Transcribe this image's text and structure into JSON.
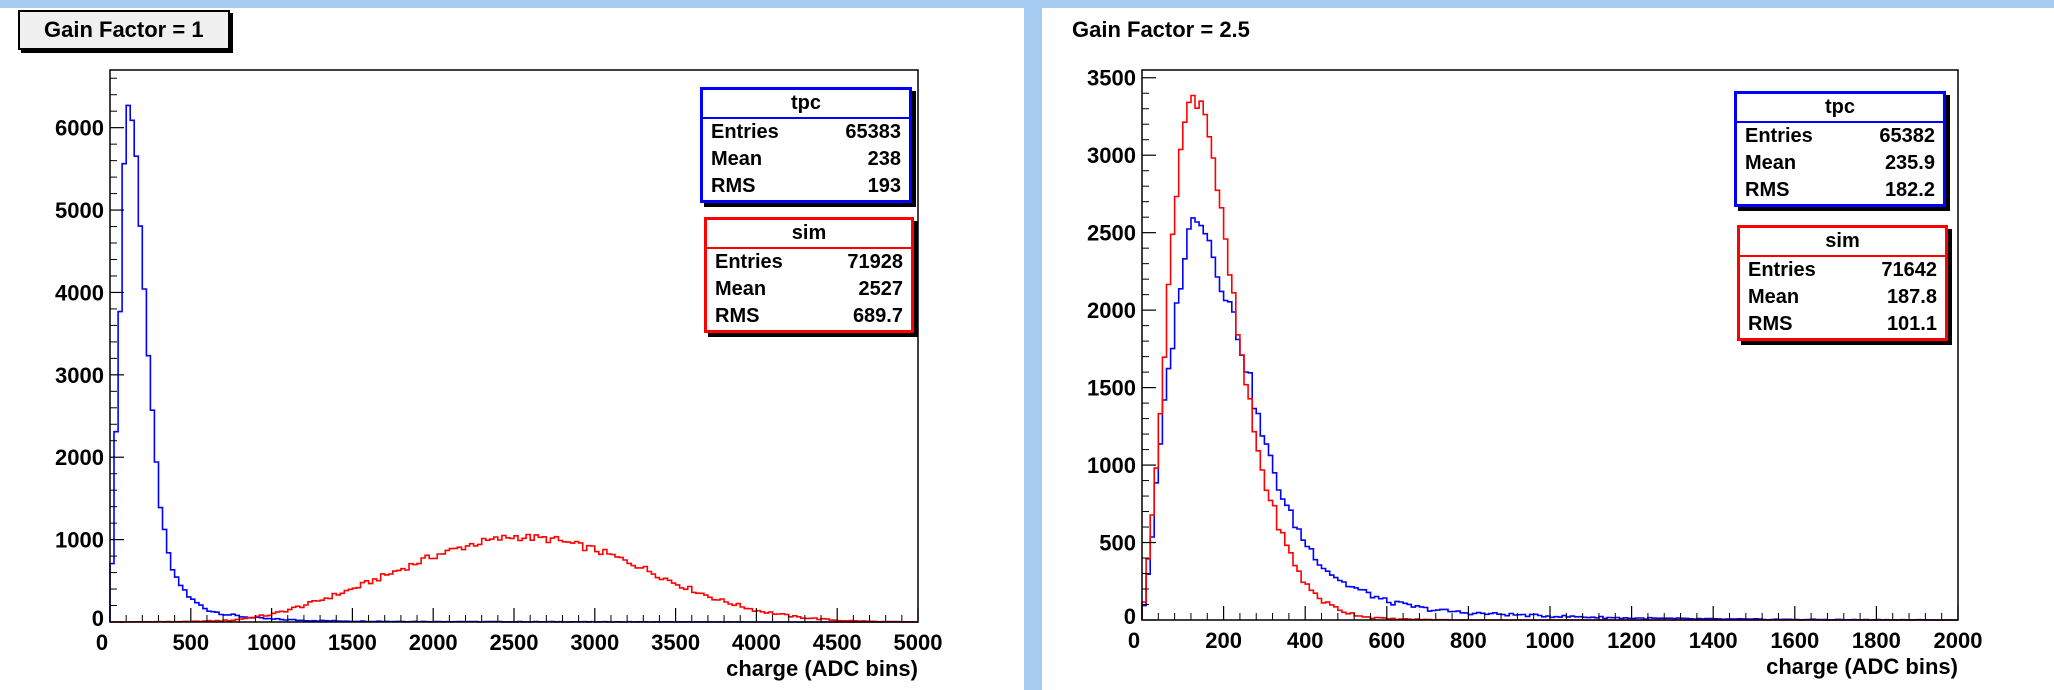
{
  "pads": [
    {
      "title": "Gain Factor = 1",
      "title_style": "boxed",
      "stats": [
        {
          "title": "tpc",
          "color": "#0000ff",
          "rows": [
            [
              "Entries",
              "65383"
            ],
            [
              "Mean",
              "238"
            ],
            [
              "RMS",
              "193"
            ]
          ]
        },
        {
          "title": "sim",
          "color": "#ff0000",
          "rows": [
            [
              "Entries",
              "71928"
            ],
            [
              "Mean",
              "2527"
            ],
            [
              "RMS",
              "689.7"
            ]
          ]
        }
      ]
    },
    {
      "title": "Gain Factor = 2.5",
      "title_style": "plain",
      "stats": [
        {
          "title": "tpc",
          "color": "#0000ff",
          "rows": [
            [
              "Entries",
              "65382"
            ],
            [
              "Mean",
              "235.9"
            ],
            [
              "RMS",
              "182.2"
            ]
          ]
        },
        {
          "title": "sim",
          "color": "#ff0000",
          "rows": [
            [
              "Entries",
              "71642"
            ],
            [
              "Mean",
              "187.8"
            ],
            [
              "RMS",
              "101.1"
            ]
          ]
        }
      ]
    }
  ],
  "chart_data": [
    {
      "type": "line",
      "title": "Gain Factor = 1",
      "xlabel": "charge (ADC bins)",
      "ylabel": "",
      "xlim": [
        0,
        5000
      ],
      "ylim": [
        0,
        6700
      ],
      "xticks": [
        0,
        500,
        1000,
        1500,
        2000,
        2500,
        3000,
        3500,
        4000,
        4500,
        5000
      ],
      "yticks": [
        0,
        1000,
        2000,
        3000,
        4000,
        5000,
        6000
      ],
      "grid": false,
      "histogram": true,
      "series": [
        {
          "name": "tpc",
          "color": "#0000ff",
          "x": [
            0,
            50,
            100,
            150,
            200,
            250,
            300,
            350,
            400,
            500,
            600,
            700,
            800,
            900,
            1000,
            1200,
            1500,
            2000,
            2500,
            3000,
            3500,
            4000,
            4500,
            5000
          ],
          "y": [
            0,
            3000,
            6400,
            6000,
            4500,
            2800,
            1600,
            900,
            550,
            280,
            150,
            100,
            70,
            50,
            35,
            20,
            10,
            5,
            3,
            2,
            1,
            0,
            0,
            0
          ]
        },
        {
          "name": "sim",
          "color": "#ff0000",
          "x": [
            0,
            500,
            750,
            1000,
            1250,
            1500,
            1750,
            2000,
            2250,
            2500,
            2750,
            3000,
            3250,
            3500,
            3750,
            4000,
            4250,
            4500,
            4750,
            5000
          ],
          "y": [
            0,
            5,
            20,
            90,
            230,
            400,
            600,
            800,
            950,
            1040,
            1000,
            880,
            700,
            470,
            280,
            140,
            60,
            20,
            5,
            0
          ]
        }
      ]
    },
    {
      "type": "line",
      "title": "Gain Factor = 2.5",
      "xlabel": "charge (ADC bins)",
      "ylabel": "",
      "xlim": [
        0,
        2000
      ],
      "ylim": [
        0,
        3550
      ],
      "xticks": [
        0,
        200,
        400,
        600,
        800,
        1000,
        1200,
        1400,
        1600,
        1800,
        2000
      ],
      "yticks": [
        0,
        500,
        1000,
        1500,
        2000,
        2500,
        3000,
        3500
      ],
      "grid": false,
      "histogram": true,
      "series": [
        {
          "name": "tpc",
          "color": "#0000ff",
          "x": [
            0,
            20,
            40,
            60,
            80,
            100,
            120,
            140,
            160,
            180,
            200,
            220,
            240,
            260,
            280,
            300,
            350,
            400,
            450,
            500,
            600,
            700,
            800,
            1000,
            1200,
            1400,
            1600,
            2000
          ],
          "y": [
            0,
            400,
            1000,
            1500,
            1900,
            2300,
            2550,
            2650,
            2500,
            2300,
            2150,
            2000,
            1800,
            1600,
            1350,
            1150,
            750,
            500,
            330,
            230,
            120,
            70,
            45,
            25,
            12,
            6,
            3,
            0
          ]
        },
        {
          "name": "sim",
          "color": "#ff0000",
          "x": [
            0,
            20,
            40,
            60,
            80,
            100,
            120,
            140,
            160,
            180,
            200,
            220,
            240,
            260,
            280,
            300,
            350,
            400,
            450,
            500,
            550,
            600,
            700,
            800
          ],
          "y": [
            0,
            500,
            1200,
            1900,
            2700,
            3150,
            3350,
            3400,
            3250,
            2900,
            2500,
            2150,
            1750,
            1450,
            1150,
            900,
            500,
            230,
            110,
            50,
            20,
            8,
            2,
            0
          ]
        }
      ]
    }
  ]
}
